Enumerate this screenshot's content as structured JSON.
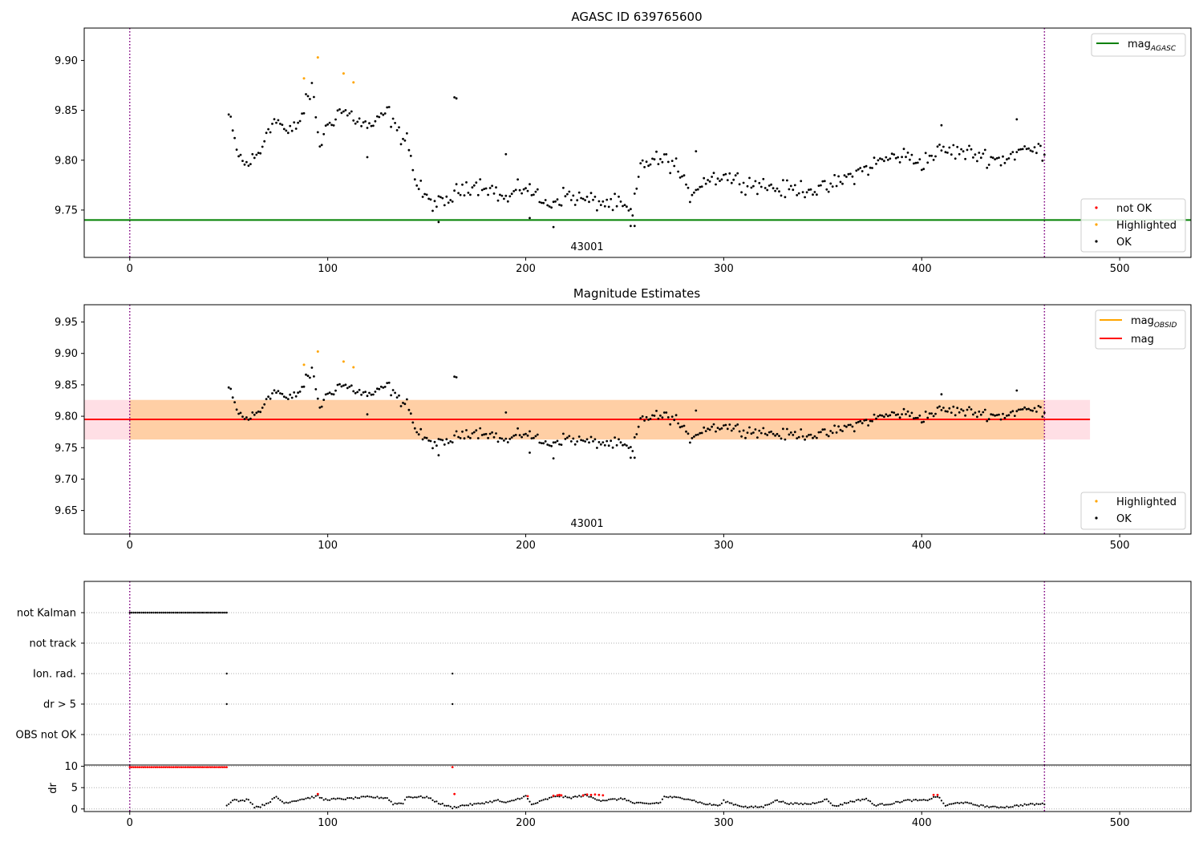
{
  "figure": {
    "colors": {
      "ok": "#000000",
      "not_ok": "#ff0000",
      "highlighted": "#ffa500",
      "mag_agasc": "#008000",
      "mag_obsid": "#ffa500",
      "mag": "#ff0000",
      "obs_limit": "#800080",
      "band_outer": "#ffc0cb",
      "band_inner": "#ffa500"
    }
  },
  "chart_data": [
    {
      "type": "scatter",
      "title": "AGASC ID 639765600",
      "xlabel": "",
      "ylabel": "",
      "xlim": [
        -23,
        536
      ],
      "ylim": [
        9.7025,
        9.9325
      ],
      "xticks": [
        "0",
        "100",
        "200",
        "300",
        "400",
        "500"
      ],
      "yticks": [
        "9.75",
        "9.80",
        "9.85",
        "9.90"
      ],
      "obsid_label": "43001",
      "obsid_label_x": 231,
      "obs_boundaries": [
        0,
        462
      ],
      "mag_agasc": 9.74,
      "legend_lines": [
        {
          "name": "mag",
          "sub": "AGASC"
        }
      ],
      "legend_points": [
        "not OK",
        "Highlighted",
        "OK"
      ],
      "legend_lines_position": "upper right",
      "legend_points_position": "lower right",
      "highlighted_points": [
        [
          88,
          9.882
        ],
        [
          95,
          9.903
        ],
        [
          108,
          9.887
        ],
        [
          113,
          9.878
        ]
      ],
      "ok_series": {
        "x_start": 50,
        "x_end": 462,
        "x_step": 1,
        "keyframes": [
          [
            50,
            9.845
          ],
          [
            54,
            9.81
          ],
          [
            58,
            9.795
          ],
          [
            62,
            9.8
          ],
          [
            66,
            9.808
          ],
          [
            70,
            9.835
          ],
          [
            75,
            9.84
          ],
          [
            80,
            9.825
          ],
          [
            86,
            9.84
          ],
          [
            92,
            9.873
          ],
          [
            96,
            9.815
          ],
          [
            100,
            9.835
          ],
          [
            106,
            9.85
          ],
          [
            112,
            9.845
          ],
          [
            118,
            9.835
          ],
          [
            124,
            9.835
          ],
          [
            130,
            9.85
          ],
          [
            136,
            9.825
          ],
          [
            140,
            9.825
          ],
          [
            144,
            9.78
          ],
          [
            150,
            9.76
          ],
          [
            158,
            9.755
          ],
          [
            162,
            9.762
          ],
          [
            170,
            9.775
          ],
          [
            180,
            9.775
          ],
          [
            190,
            9.76
          ],
          [
            200,
            9.775
          ],
          [
            210,
            9.755
          ],
          [
            220,
            9.765
          ],
          [
            230,
            9.76
          ],
          [
            240,
            9.757
          ],
          [
            248,
            9.755
          ],
          [
            254,
            9.745
          ],
          [
            258,
            9.795
          ],
          [
            264,
            9.8
          ],
          [
            270,
            9.8
          ],
          [
            276,
            9.795
          ],
          [
            282,
            9.765
          ],
          [
            290,
            9.78
          ],
          [
            300,
            9.785
          ],
          [
            310,
            9.778
          ],
          [
            320,
            9.775
          ],
          [
            330,
            9.77
          ],
          [
            340,
            9.772
          ],
          [
            350,
            9.77
          ],
          [
            360,
            9.78
          ],
          [
            370,
            9.79
          ],
          [
            380,
            9.8
          ],
          [
            390,
            9.805
          ],
          [
            400,
            9.798
          ],
          [
            410,
            9.81
          ],
          [
            420,
            9.808
          ],
          [
            430,
            9.805
          ],
          [
            440,
            9.8
          ],
          [
            450,
            9.81
          ],
          [
            462,
            9.81
          ]
        ],
        "noise": 0.013,
        "extras": [
          [
            164,
            9.863
          ],
          [
            165,
            9.862
          ],
          [
            190,
            9.806
          ],
          [
            120,
            9.803
          ],
          [
            156,
            9.738
          ],
          [
            214,
            9.733
          ],
          [
            202,
            9.742
          ],
          [
            253,
            9.734
          ],
          [
            255,
            9.734
          ],
          [
            286,
            9.809
          ],
          [
            448,
            9.841
          ],
          [
            410,
            9.835
          ]
        ]
      }
    },
    {
      "type": "scatter",
      "title": "Magnitude Estimates",
      "xlabel": "",
      "ylabel": "",
      "xlim": [
        -23,
        536
      ],
      "ylim": [
        9.6125,
        9.9775
      ],
      "xticks": [
        "0",
        "100",
        "200",
        "300",
        "400",
        "500"
      ],
      "yticks": [
        "9.65",
        "9.70",
        "9.75",
        "9.80",
        "9.85",
        "9.90",
        "9.95"
      ],
      "obsid_label": "43001",
      "obsid_label_x": 231,
      "obs_boundaries": [
        0,
        462
      ],
      "mag": 9.795,
      "mag_obsid": 9.795,
      "band_outer": [
        -23,
        485,
        9.763,
        9.826
      ],
      "band_inner": [
        0,
        462,
        9.763,
        9.826
      ],
      "legend_lines": [
        {
          "name": "mag",
          "sub": "OBSID"
        },
        {
          "name": "mag",
          "sub": ""
        }
      ],
      "legend_points": [
        "Highlighted",
        "OK"
      ],
      "legend_lines_position": "upper right",
      "legend_points_position": "lower right"
    },
    {
      "type": "scatter",
      "title": "",
      "xlabel": "",
      "ylabel": "",
      "xlim": [
        -23,
        536
      ],
      "xticks": [
        "0",
        "100",
        "200",
        "300",
        "400",
        "500"
      ],
      "flag_labels": [
        "not Kalman",
        "not track",
        "Ion. rad.",
        "dr > 5",
        "OBS not OK"
      ],
      "flag_points": {
        "not Kalman": {
          "x_start": 0,
          "x_end": 49
        },
        "not track": {
          "points": []
        },
        "Ion. rad.": {
          "points": [
            49,
            163
          ]
        },
        "dr > 5": {
          "points": [
            49,
            163
          ]
        },
        "OBS not OK": {
          "points": []
        }
      },
      "obs_boundaries": [
        0,
        462
      ]
    },
    {
      "type": "scatter",
      "title": "",
      "xlabel": "",
      "ylabel": "dr",
      "xlim": [
        -23,
        536
      ],
      "ylim": [
        -0.6,
        10.3
      ],
      "yticks": [
        "0",
        "5",
        "10"
      ],
      "obs_boundaries": [
        0,
        462
      ],
      "dr_clipped": {
        "x_start": 0,
        "x_end": 49,
        "value": 9.8
      },
      "red_points": [
        [
          95,
          3.5
        ],
        [
          163,
          9.8
        ],
        [
          164,
          3.5
        ],
        [
          201,
          3.0
        ],
        [
          214,
          3.1
        ],
        [
          216,
          3.2
        ],
        [
          217,
          3.3
        ],
        [
          218,
          3.2
        ],
        [
          229,
          3.2
        ],
        [
          231,
          3.4
        ],
        [
          233,
          3.3
        ],
        [
          235,
          3.4
        ],
        [
          237,
          3.3
        ],
        [
          239,
          3.2
        ],
        [
          406,
          3.3
        ],
        [
          408,
          3.3
        ]
      ],
      "dr_keyframes": [
        [
          49,
          0.8
        ],
        [
          52,
          2.2
        ],
        [
          56,
          1.8
        ],
        [
          60,
          2.3
        ],
        [
          63,
          0.5
        ],
        [
          66,
          0.6
        ],
        [
          70,
          1.5
        ],
        [
          74,
          2.8
        ],
        [
          78,
          1.4
        ],
        [
          86,
          2.2
        ],
        [
          95,
          3.0
        ],
        [
          98,
          2.2
        ],
        [
          110,
          2.4
        ],
        [
          120,
          2.8
        ],
        [
          130,
          2.6
        ],
        [
          133,
          1.2
        ],
        [
          138,
          1.4
        ],
        [
          140,
          2.8
        ],
        [
          150,
          2.8
        ],
        [
          156,
          1.4
        ],
        [
          163,
          0.3
        ],
        [
          168,
          0.8
        ],
        [
          176,
          1.2
        ],
        [
          186,
          2.0
        ],
        [
          190,
          1.4
        ],
        [
          200,
          3.0
        ],
        [
          203,
          1.0
        ],
        [
          210,
          2.2
        ],
        [
          216,
          3.1
        ],
        [
          222,
          2.6
        ],
        [
          230,
          3.2
        ],
        [
          238,
          2.0
        ],
        [
          250,
          2.4
        ],
        [
          254,
          1.4
        ],
        [
          262,
          1.2
        ],
        [
          268,
          1.5
        ],
        [
          270,
          2.9
        ],
        [
          282,
          2.4
        ],
        [
          290,
          1.2
        ],
        [
          298,
          0.8
        ],
        [
          300,
          1.9
        ],
        [
          306,
          1.0
        ],
        [
          312,
          0.4
        ],
        [
          320,
          0.5
        ],
        [
          326,
          2.0
        ],
        [
          334,
          1.2
        ],
        [
          344,
          1.2
        ],
        [
          352,
          2.2
        ],
        [
          356,
          0.6
        ],
        [
          364,
          1.7
        ],
        [
          372,
          2.4
        ],
        [
          376,
          0.9
        ],
        [
          384,
          1.2
        ],
        [
          392,
          2.0
        ],
        [
          402,
          2.0
        ],
        [
          408,
          3.0
        ],
        [
          412,
          0.8
        ],
        [
          420,
          1.6
        ],
        [
          428,
          0.9
        ],
        [
          436,
          0.4
        ],
        [
          444,
          0.5
        ],
        [
          452,
          1.0
        ],
        [
          462,
          1.2
        ]
      ]
    }
  ]
}
